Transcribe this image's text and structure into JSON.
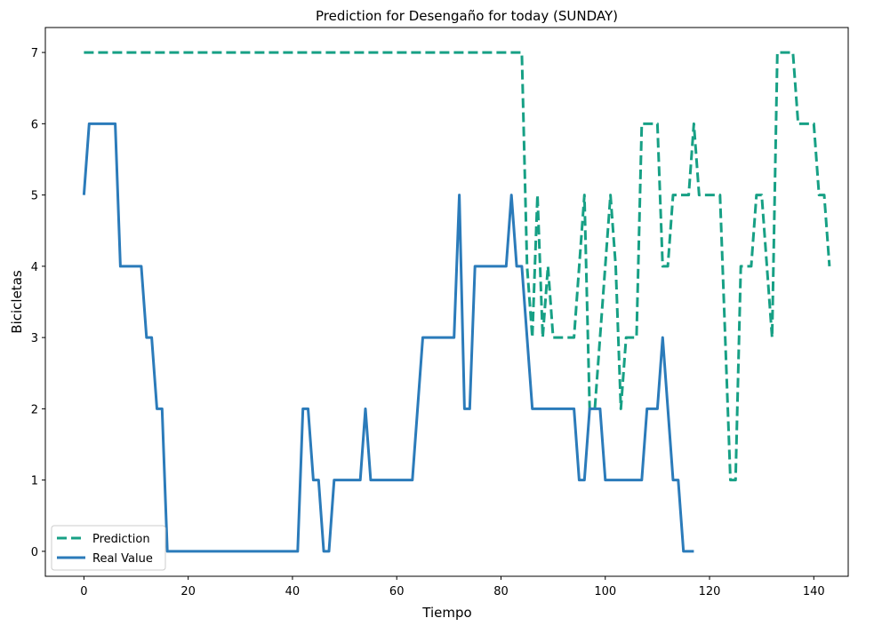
{
  "chart_data": {
    "type": "line",
    "title": "Prediction for Desengaño for today (SUNDAY)",
    "xlabel": "Tiempo",
    "ylabel": "Bicicletas",
    "xlim": [
      -7.4,
      146.6
    ],
    "ylim": [
      -0.35,
      7.35
    ],
    "xticks": [
      0,
      20,
      40,
      60,
      80,
      100,
      120,
      140
    ],
    "yticks": [
      0,
      1,
      2,
      3,
      4,
      5,
      6,
      7
    ],
    "grid": false,
    "legend_position": "lower-left",
    "series": [
      {
        "name": "Prediction",
        "color": "#17a085",
        "style": "dashed",
        "points": [
          [
            0,
            7
          ],
          [
            84,
            7
          ],
          [
            85,
            4
          ],
          [
            86,
            3
          ],
          [
            87,
            5
          ],
          [
            88,
            3
          ],
          [
            89,
            4
          ],
          [
            90,
            3
          ],
          [
            94,
            3
          ],
          [
            96,
            5
          ],
          [
            97,
            2
          ],
          [
            98,
            2
          ],
          [
            101,
            5
          ],
          [
            102,
            4
          ],
          [
            103,
            2
          ],
          [
            104,
            3
          ],
          [
            106,
            3
          ],
          [
            107,
            6
          ],
          [
            110,
            6
          ],
          [
            111,
            4
          ],
          [
            112,
            4
          ],
          [
            113,
            5
          ],
          [
            116,
            5
          ],
          [
            117,
            6
          ],
          [
            118,
            5
          ],
          [
            122,
            5
          ],
          [
            124,
            1
          ],
          [
            125,
            1
          ],
          [
            126,
            4
          ],
          [
            128,
            4
          ],
          [
            129,
            5
          ],
          [
            130,
            5
          ],
          [
            132,
            3
          ],
          [
            133,
            7
          ],
          [
            136,
            7
          ],
          [
            137,
            6
          ],
          [
            140,
            6
          ],
          [
            141,
            5
          ],
          [
            142,
            5
          ],
          [
            143,
            4
          ]
        ]
      },
      {
        "name": "Real Value",
        "color": "#2b7bba",
        "style": "solid",
        "points": [
          [
            0,
            5
          ],
          [
            1,
            6
          ],
          [
            6,
            6
          ],
          [
            7,
            4
          ],
          [
            11,
            4
          ],
          [
            12,
            3
          ],
          [
            13,
            3
          ],
          [
            14,
            2
          ],
          [
            15,
            2
          ],
          [
            16,
            0
          ],
          [
            41,
            0
          ],
          [
            42,
            2
          ],
          [
            43,
            2
          ],
          [
            44,
            1
          ],
          [
            45,
            1
          ],
          [
            46,
            0
          ],
          [
            47,
            0
          ],
          [
            48,
            1
          ],
          [
            53,
            1
          ],
          [
            54,
            2
          ],
          [
            55,
            1
          ],
          [
            63,
            1
          ],
          [
            65,
            3
          ],
          [
            71,
            3
          ],
          [
            72,
            5
          ],
          [
            73,
            2
          ],
          [
            74,
            2
          ],
          [
            75,
            4
          ],
          [
            81,
            4
          ],
          [
            82,
            5
          ],
          [
            83,
            4
          ],
          [
            84,
            4
          ],
          [
            86,
            2
          ],
          [
            94,
            2
          ],
          [
            95,
            1
          ],
          [
            96,
            1
          ],
          [
            97,
            2
          ],
          [
            99,
            2
          ],
          [
            100,
            1
          ],
          [
            107,
            1
          ],
          [
            108,
            2
          ],
          [
            110,
            2
          ],
          [
            111,
            3
          ],
          [
            113,
            1
          ],
          [
            114,
            1
          ],
          [
            115,
            0
          ],
          [
            117,
            0
          ]
        ]
      }
    ]
  }
}
